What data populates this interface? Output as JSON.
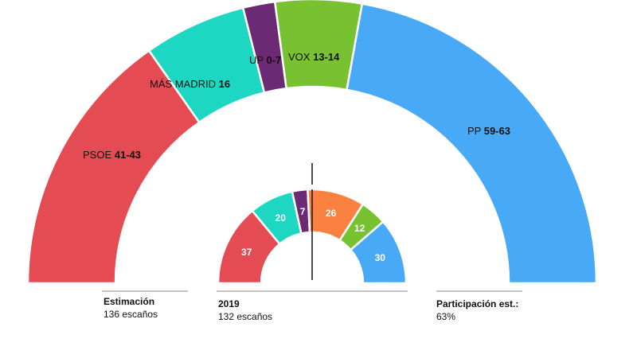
{
  "chart_data": [
    {
      "type": "parliament-semicircle",
      "title": "Estimación",
      "subtitle": "136 escaños",
      "series": [
        {
          "name": "PSOE",
          "value_label": "41-43",
          "value": 42,
          "color": "#e54b52"
        },
        {
          "name": "MÁS MADRID",
          "value_label": "16",
          "value": 16,
          "color": "#1ed7c3"
        },
        {
          "name": "UP",
          "value_label": "0-7",
          "value": 5,
          "color": "#6b2a73"
        },
        {
          "name": "VOX",
          "value_label": "13-14",
          "value": 13.5,
          "color": "#78c232"
        },
        {
          "name": "PP",
          "value_label": "59-63",
          "value": 61,
          "color": "#48aaf7"
        }
      ]
    },
    {
      "type": "parliament-semicircle",
      "title": "2019",
      "subtitle": "132 escaños",
      "series": [
        {
          "value": 37,
          "color": "#e54b52"
        },
        {
          "value": 20,
          "color": "#1ed7c3"
        },
        {
          "value": 7,
          "color": "#6b2a73"
        },
        {
          "value": 26,
          "color": "#fa8140"
        },
        {
          "value": 12,
          "color": "#78c232"
        },
        {
          "value": 30,
          "color": "#48aaf7"
        }
      ]
    }
  ],
  "participation": {
    "title": "Participación est.:",
    "value": "63%"
  }
}
